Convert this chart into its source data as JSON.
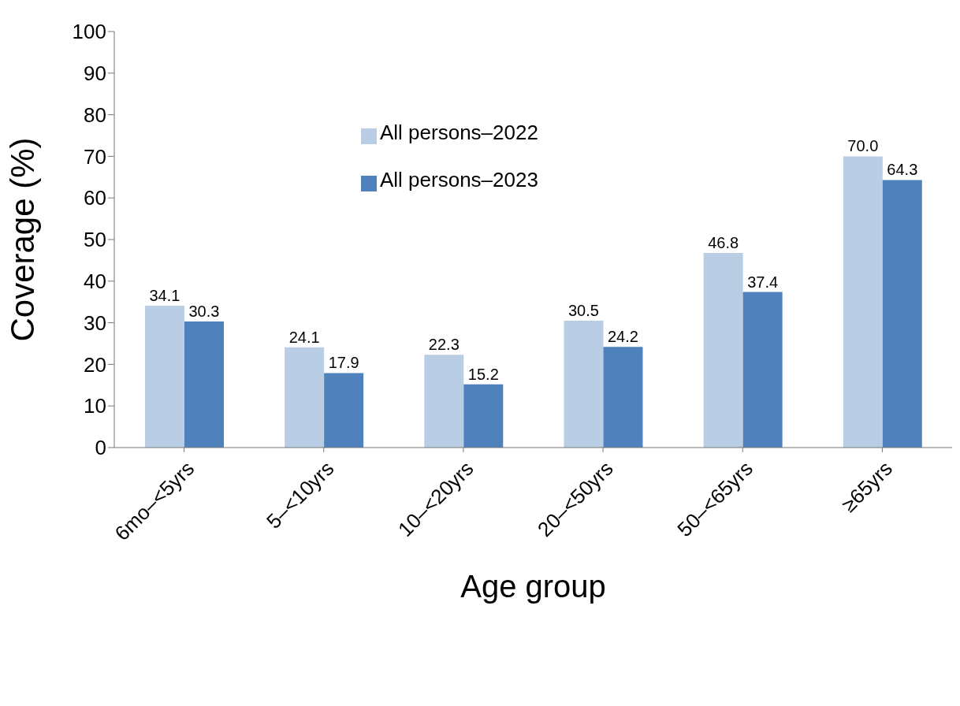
{
  "chart_data": {
    "type": "bar",
    "xlabel": "Age group",
    "ylabel": "Coverage (%)",
    "categories": [
      "6mo–<5yrs",
      "5–<10yrs",
      "10–<20yrs",
      "20–<50yrs",
      "50–<65yrs",
      "≥65yrs"
    ],
    "series": [
      {
        "name": "All persons–2022",
        "color": "#b9cde5",
        "values": [
          34.1,
          24.1,
          22.3,
          30.5,
          46.8,
          70.0
        ],
        "value_labels": [
          "34.1",
          "24.1",
          "22.3",
          "30.5",
          "46.8",
          "70.0"
        ]
      },
      {
        "name": "All persons–2023",
        "color": "#4f81bd",
        "values": [
          30.3,
          17.9,
          15.2,
          24.2,
          37.4,
          64.3
        ],
        "value_labels": [
          "30.3",
          "17.9",
          "15.2",
          "24.2",
          "37.4",
          "64.3"
        ]
      }
    ],
    "ylim": [
      0,
      100
    ],
    "yticks": [
      0,
      10,
      20,
      30,
      40,
      50,
      60,
      70,
      80,
      90,
      100
    ],
    "grid": false,
    "legend": "top"
  }
}
